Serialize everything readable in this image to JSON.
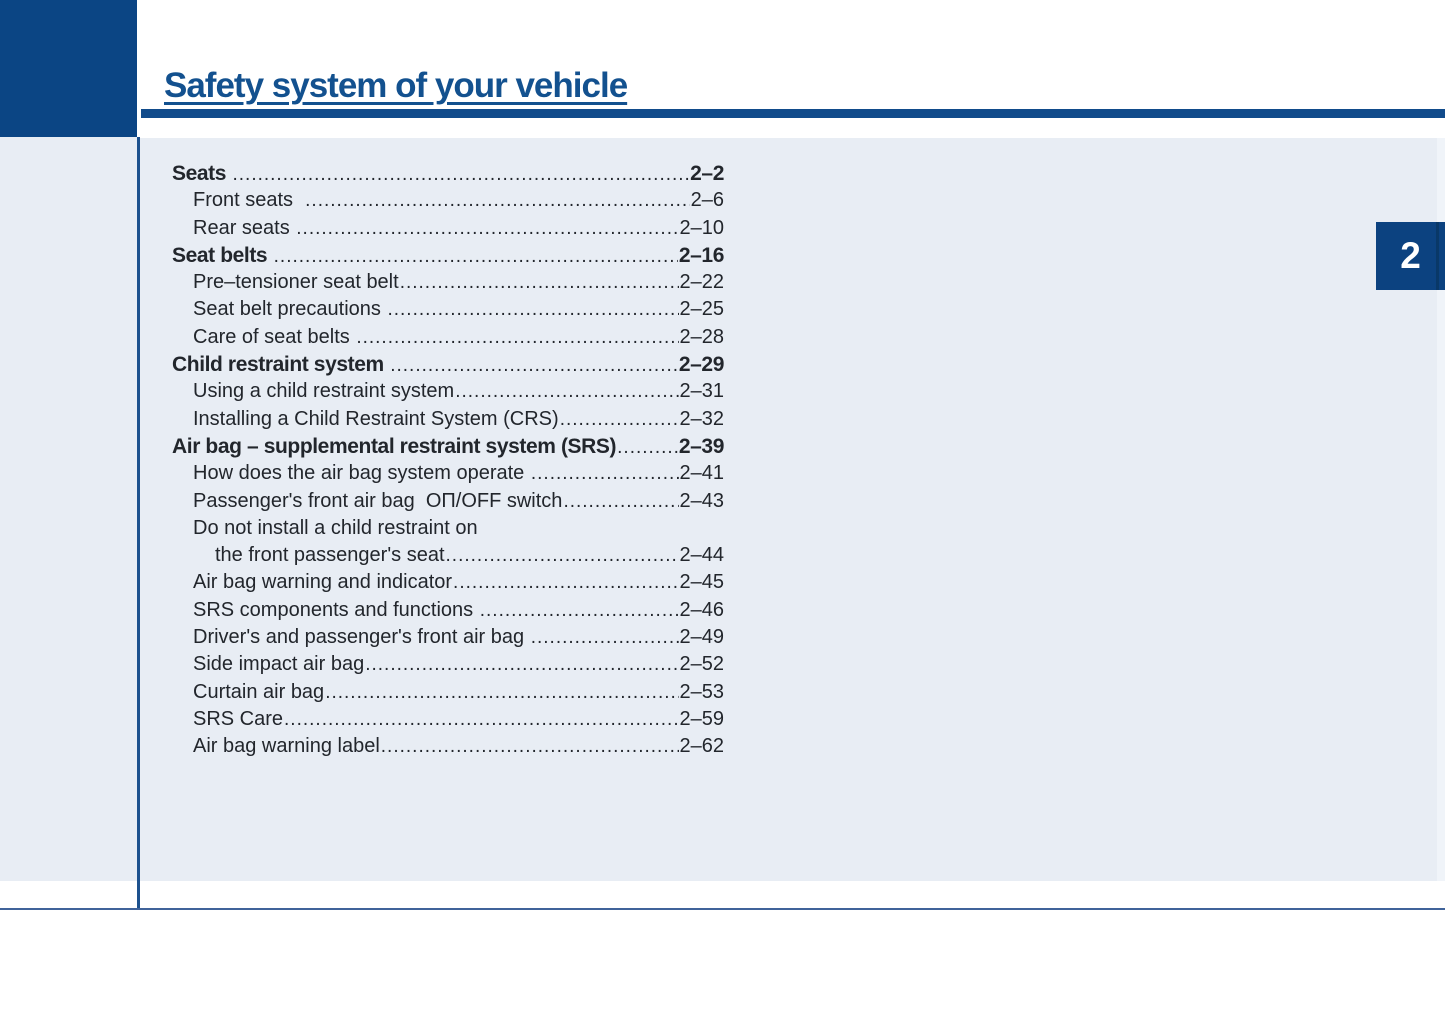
{
  "page": {
    "chapter_title": "Safety system of your vehicle",
    "chapter_number": "2"
  },
  "toc": {
    "entries": [
      {
        "label": "Seats ",
        "page": "2–2",
        "level": 1,
        "dots": true
      },
      {
        "label": "Front seats  ",
        "page": "2–6",
        "level": 2,
        "dots": true
      },
      {
        "label": "Rear seats ",
        "page": "2–10",
        "level": 2,
        "dots": true
      },
      {
        "label": "Seat belts ",
        "page": "2–16",
        "level": 1,
        "dots": true
      },
      {
        "label": "Pre–tensioner seat belt",
        "page": "2–22",
        "level": 2,
        "dots": true
      },
      {
        "label": "Seat belt precautions ",
        "page": "2–25",
        "level": 2,
        "dots": true
      },
      {
        "label": "Care of seat belts ",
        "page": "2–28",
        "level": 2,
        "dots": true
      },
      {
        "label": "Child restraint system ",
        "page": "2–29",
        "level": 1,
        "dots": true
      },
      {
        "label": "Using a child restraint system",
        "page": "2–31",
        "level": 2,
        "dots": true
      },
      {
        "label": "Installing a Child Restraint System (CRS)",
        "page": "2–32",
        "level": 2,
        "dots": true
      },
      {
        "label": "Air bag – supplemental restraint system (SRS)",
        "page": "2–39",
        "level": 1,
        "dots": true
      },
      {
        "label": "How does the air bag system operate ",
        "page": "2–41",
        "level": 2,
        "dots": true
      },
      {
        "label": "Passenger's front air bag  OП/OFF switch",
        "page": "2–43",
        "level": 2,
        "dots": true
      },
      {
        "label": "Do not install a child restraint on",
        "page": "",
        "level": 2,
        "dots": false
      },
      {
        "label": "the front passenger's seat",
        "page": "2–44",
        "level": 3,
        "dots": true
      },
      {
        "label": "Air bag warning and indicator",
        "page": "2–45",
        "level": 2,
        "dots": true
      },
      {
        "label": "SRS components and functions ",
        "page": "2–46",
        "level": 2,
        "dots": true
      },
      {
        "label": "Driver's and passenger's front air bag ",
        "page": "2–49",
        "level": 2,
        "dots": true
      },
      {
        "label": "Side impact air bag",
        "page": "2–52",
        "level": 2,
        "dots": true
      },
      {
        "label": "Curtain air bag",
        "page": "2–53",
        "level": 2,
        "dots": true
      },
      {
        "label": "SRS Care",
        "page": "2–59",
        "level": 2,
        "dots": true
      },
      {
        "label": "Air bag warning label",
        "page": "2–62",
        "level": 2,
        "dots": true
      }
    ]
  },
  "colors": {
    "primary_blue": "#0b4584",
    "title_blue": "#13518f",
    "tab_blue": "#0c4280",
    "panel_bg": "#e8edf4",
    "text": "#22262c",
    "footer_rule": "#40639a"
  }
}
